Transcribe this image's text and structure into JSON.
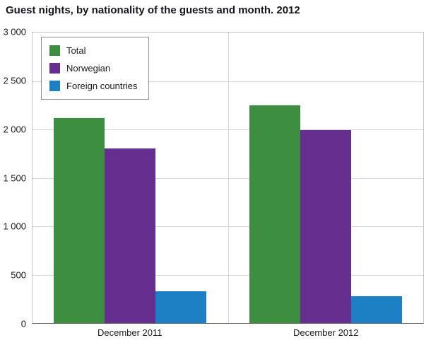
{
  "title": "Guest nights, by nationality of the guests and month. 2012",
  "chart_data": {
    "type": "bar",
    "title": "Guest nights, by nationality of the guests and month. 2012",
    "categories": [
      "December 2011",
      "December 2012"
    ],
    "series": [
      {
        "name": "Total",
        "color": "#3e8e41",
        "values": [
          2120,
          2250
        ]
      },
      {
        "name": "Norwegian",
        "color": "#662e8e",
        "values": [
          1800,
          1990
        ]
      },
      {
        "name": "Foreign countries",
        "color": "#1d7fc4",
        "values": [
          330,
          280
        ]
      }
    ],
    "ylim": [
      0,
      3000
    ],
    "yticks": [
      0,
      500,
      1000,
      1500,
      2000,
      2500,
      3000
    ],
    "ytick_labels": [
      "0",
      "500",
      "1 000",
      "1 500",
      "2 000",
      "2 500",
      "3 000"
    ],
    "grid": "horizontal",
    "legend_position": "top-left"
  }
}
